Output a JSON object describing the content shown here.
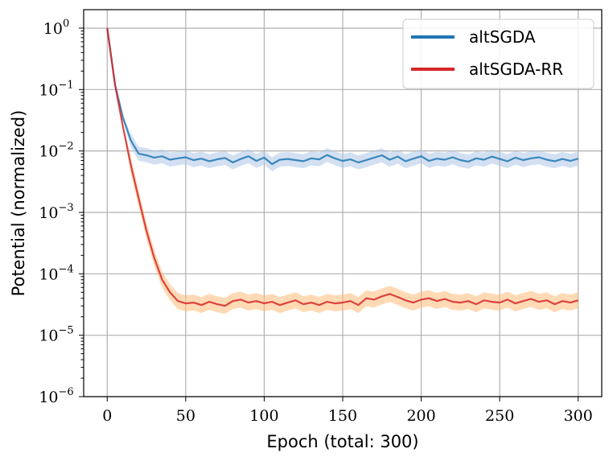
{
  "chart_data": {
    "type": "line",
    "title": "",
    "xlabel": "Epoch (total: 300)",
    "ylabel": "Potential (normalized)",
    "xlim": [
      -15,
      315
    ],
    "ylim": [
      1e-06,
      2
    ],
    "yscale": "log",
    "grid": true,
    "legend_position": "top-right",
    "x_ticks": [
      0,
      50,
      100,
      150,
      200,
      250,
      300
    ],
    "y_ticks": [
      {
        "value": 1,
        "base": "10",
        "exp": "0"
      },
      {
        "value": 0.1,
        "base": "10",
        "exp": "−1"
      },
      {
        "value": 0.01,
        "base": "10",
        "exp": "−2"
      },
      {
        "value": 0.001,
        "base": "10",
        "exp": "−3"
      },
      {
        "value": 0.0001,
        "base": "10",
        "exp": "−4"
      },
      {
        "value": 1e-05,
        "base": "10",
        "exp": "−5"
      },
      {
        "value": 1e-06,
        "base": "10",
        "exp": "−6"
      }
    ],
    "series": [
      {
        "name": "altSGDA",
        "color": "#1f77b4",
        "band_color": "#aec7e8",
        "x": [
          0,
          5,
          10,
          15,
          20,
          25,
          30,
          35,
          40,
          45,
          50,
          55,
          60,
          65,
          70,
          75,
          80,
          85,
          90,
          95,
          100,
          105,
          110,
          115,
          120,
          125,
          130,
          135,
          140,
          145,
          150,
          155,
          160,
          165,
          170,
          175,
          180,
          185,
          190,
          195,
          200,
          205,
          210,
          215,
          220,
          225,
          230,
          235,
          240,
          245,
          250,
          255,
          260,
          265,
          270,
          275,
          280,
          285,
          290,
          295,
          300
        ],
        "y": [
          1.0,
          0.12,
          0.035,
          0.015,
          0.009,
          0.0085,
          0.0078,
          0.0082,
          0.0072,
          0.0076,
          0.0079,
          0.0071,
          0.0075,
          0.0068,
          0.0073,
          0.0077,
          0.0065,
          0.0074,
          0.0082,
          0.0069,
          0.0078,
          0.0061,
          0.0072,
          0.0074,
          0.0071,
          0.0068,
          0.0076,
          0.0073,
          0.0086,
          0.0076,
          0.0069,
          0.0073,
          0.0065,
          0.0071,
          0.0078,
          0.0085,
          0.0072,
          0.0081,
          0.0068,
          0.0075,
          0.0082,
          0.0069,
          0.0075,
          0.0072,
          0.0079,
          0.0071,
          0.0067,
          0.0076,
          0.0072,
          0.0081,
          0.0074,
          0.0068,
          0.0078,
          0.0071,
          0.0076,
          0.0079,
          0.0072,
          0.0068,
          0.0074,
          0.0069,
          0.0075
        ],
        "band_factor": 1.3
      },
      {
        "name": "altSGDA-RR",
        "color": "#d62728",
        "band_color": "#ffbb78",
        "x": [
          0,
          5,
          10,
          15,
          20,
          25,
          30,
          35,
          40,
          45,
          50,
          55,
          60,
          65,
          70,
          75,
          80,
          85,
          90,
          95,
          100,
          105,
          110,
          115,
          120,
          125,
          130,
          135,
          140,
          145,
          150,
          155,
          160,
          165,
          170,
          175,
          180,
          185,
          190,
          195,
          200,
          205,
          210,
          215,
          220,
          225,
          230,
          235,
          240,
          245,
          250,
          255,
          260,
          265,
          270,
          275,
          280,
          285,
          290,
          295,
          300
        ],
        "y": [
          1.0,
          0.12,
          0.025,
          0.006,
          0.0017,
          0.0005,
          0.00018,
          8e-05,
          5e-05,
          3.6e-05,
          3.3e-05,
          3.4e-05,
          3.1e-05,
          3.5e-05,
          3.2e-05,
          3e-05,
          3.6e-05,
          3.8e-05,
          3.4e-05,
          3.6e-05,
          3.3e-05,
          3.5e-05,
          3.1e-05,
          3.4e-05,
          3.7e-05,
          3.2e-05,
          3.4e-05,
          3.1e-05,
          3.5e-05,
          3.3e-05,
          3.4e-05,
          3.6e-05,
          3.1e-05,
          4e-05,
          3.8e-05,
          4.3e-05,
          4.7e-05,
          4.2e-05,
          3.7e-05,
          3.4e-05,
          3.8e-05,
          4e-05,
          3.6e-05,
          3.9e-05,
          3.5e-05,
          3.4e-05,
          3.6e-05,
          3.2e-05,
          3.7e-05,
          3.5e-05,
          3.4e-05,
          3.8e-05,
          3.3e-05,
          3.6e-05,
          3.9e-05,
          3.5e-05,
          3.7e-05,
          3.2e-05,
          3.6e-05,
          3.4e-05,
          3.7e-05
        ],
        "band_factor": 1.35
      }
    ]
  }
}
